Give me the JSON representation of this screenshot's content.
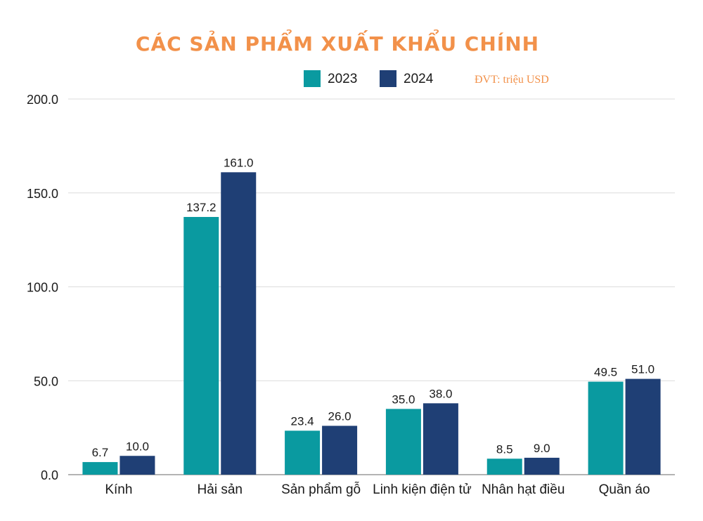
{
  "chart_data": {
    "type": "bar",
    "title": "CÁC SẢN PHẨM XUẤT KHẨU CHÍNH",
    "unit_note": "ĐVT: triệu USD",
    "categories": [
      "Kính",
      "Hải sản",
      "Sản phẩm gỗ",
      "Linh kiện điện tử",
      "Nhân hạt điều",
      "Quần áo"
    ],
    "series": [
      {
        "name": "2023",
        "color": "#0a9aa0",
        "values": [
          6.7,
          137.2,
          23.4,
          35.0,
          8.5,
          49.5
        ]
      },
      {
        "name": "2024",
        "color": "#1f3f75",
        "values": [
          10.0,
          161.0,
          26.0,
          38.0,
          9.0,
          51.0
        ]
      }
    ],
    "yticks": [
      "0.0",
      "50.0",
      "100.0",
      "150.0",
      "200.0"
    ],
    "ylim": [
      0,
      200
    ],
    "xlabel": "",
    "ylabel": "",
    "grid": true,
    "legend": "top-center"
  }
}
